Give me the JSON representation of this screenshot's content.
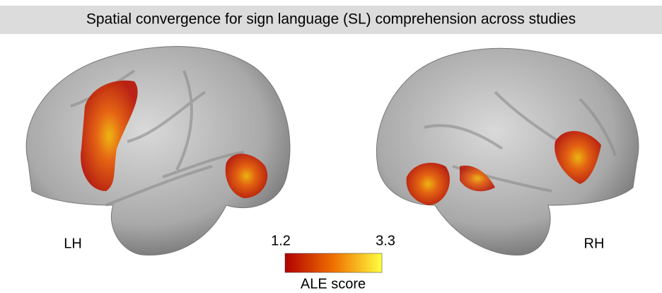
{
  "header": {
    "title": "Spatial convergence for sign language (SL) comprehension across studies"
  },
  "hemispheres": [
    {
      "label": "LH"
    },
    {
      "label": "RH"
    }
  ],
  "colorbar": {
    "min": 1.2,
    "max": 3.3,
    "label": "ALE score"
  }
}
